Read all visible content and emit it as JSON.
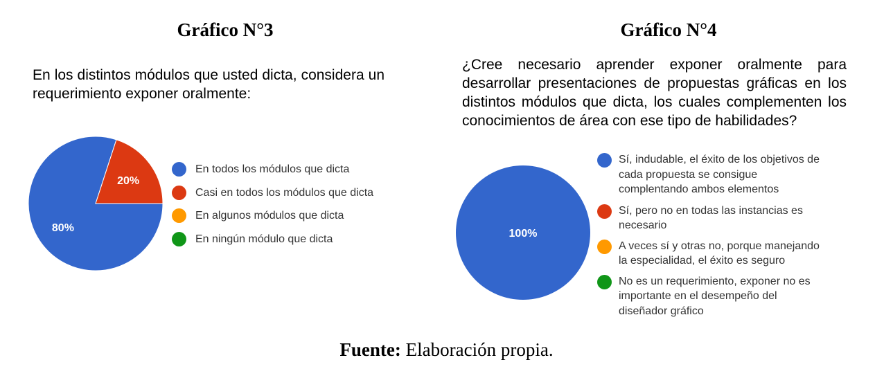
{
  "source": {
    "label": "Fuente:",
    "text": " Elaboración propia."
  },
  "chart_data": [
    {
      "type": "pie",
      "title": "Gráfico N°3",
      "question": "En los distintos módulos que usted dicta, considera un requerimiento exponer oralmente:",
      "legend_placement": "right",
      "slices": [
        {
          "label": "En todos los módulos que dicta",
          "value": 80,
          "value_label": "80%",
          "color": "#3366cc"
        },
        {
          "label": "Casi en todos los módulos que dicta",
          "value": 20,
          "value_label": "20%",
          "color": "#dc3912"
        },
        {
          "label": "En algunos módulos que dicta",
          "value": 0,
          "value_label": "",
          "color": "#ff9900"
        },
        {
          "label": "En ningún módulo que dicta",
          "value": 0,
          "value_label": "",
          "color": "#109618"
        }
      ]
    },
    {
      "type": "pie",
      "title": "Gráfico N°4",
      "question": "¿Cree necesario aprender exponer oralmente para desarrollar presentaciones de propuestas gráficas en los distintos módulos que dicta, los cuales complementen los conocimientos de área con ese tipo de habilidades?",
      "legend_placement": "right",
      "slices": [
        {
          "label": "Sí, indudable, el éxito de los objetivos de cada propuesta se consigue complentando ambos elementos",
          "value": 100,
          "value_label": "100%",
          "color": "#3366cc"
        },
        {
          "label": "Sí, pero no en todas las instancias es necesario",
          "value": 0,
          "value_label": "",
          "color": "#dc3912"
        },
        {
          "label": "A veces sí y otras no, porque manejando la especialidad, el éxito es seguro",
          "value": 0,
          "value_label": "",
          "color": "#ff9900"
        },
        {
          "label": "No es un  requerimiento, exponer no es importante en el desempeño del diseñador gráfico",
          "value": 0,
          "value_label": "",
          "color": "#109618"
        }
      ]
    }
  ]
}
